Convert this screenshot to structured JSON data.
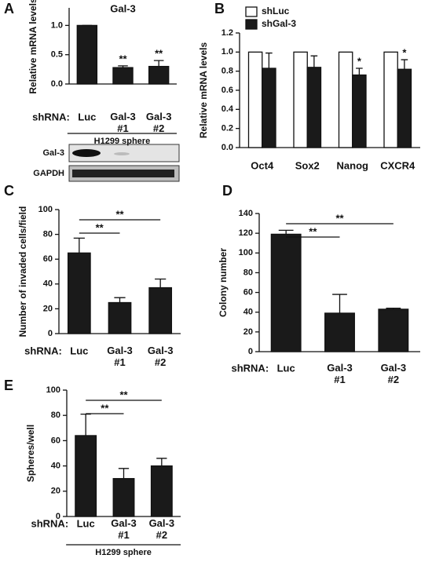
{
  "chart_data": [
    {
      "type": "bar",
      "panel": "A",
      "title": "Gal-3",
      "y_label": "Relative mRNA levels",
      "x_prefix": "shRNA:",
      "categories": [
        "Luc",
        "Gal-3 #1",
        "Gal-3 #2"
      ],
      "values": [
        1.0,
        0.28,
        0.3
      ],
      "errors": [
        0,
        0.03,
        0.1
      ],
      "annotations": [
        null,
        "**",
        "**"
      ],
      "color": "#1a1a1a",
      "footnote": "H1299 sphere",
      "ylim": [
        0,
        1.3
      ],
      "yticks": [
        {
          "value": 0,
          "label": "0.0"
        },
        0.5,
        {
          "value": 1,
          "label": "1.0"
        }
      ]
    },
    {
      "type": "grouped_bar",
      "panel": "B",
      "y_label": "Relative mRNA levels",
      "legend": "top-left",
      "categories": [
        "Oct4",
        "Sox2",
        "Nanog",
        "CXCR4"
      ],
      "series": [
        {
          "name": "shLuc",
          "color": "#ffffff",
          "values": [
            1.0,
            1.0,
            1.0,
            1.0
          ]
        },
        {
          "name": "shGal-3",
          "color": "#1a1a1a",
          "values": [
            0.83,
            0.84,
            0.76,
            0.82
          ],
          "errors": [
            0.16,
            0.12,
            0.07,
            0.1
          ],
          "annotations": [
            null,
            null,
            "*",
            "*"
          ]
        }
      ],
      "ylim": [
        0,
        1.2
      ],
      "yticks": [
        {
          "value": 0,
          "label": "0.0"
        },
        0.2,
        0.4,
        0.6,
        0.8,
        {
          "value": 1,
          "label": "1.0"
        },
        1.2
      ]
    },
    {
      "type": "bar",
      "panel": "C",
      "y_label": "Number of invaded cells/field",
      "x_prefix": "shRNA:",
      "categories": [
        "Luc",
        "Gal-3 #1",
        "Gal-3 #2"
      ],
      "values": [
        65,
        25,
        37
      ],
      "errors": [
        12,
        4,
        7
      ],
      "color": "#1a1a1a",
      "brackets": [
        {
          "label": "**",
          "from": "Luc",
          "to": "Gal-3 #1"
        },
        {
          "label": "**",
          "from": "Luc",
          "to": "Gal-3 #2"
        }
      ],
      "ylim": [
        0,
        100
      ],
      "yticks": [
        0,
        20,
        40,
        60,
        80,
        100
      ]
    },
    {
      "type": "bar",
      "panel": "D",
      "y_label": "Colony number",
      "x_prefix": "shRNA:",
      "categories": [
        "Luc",
        "Gal-3 #1",
        "Gal-3 #2"
      ],
      "values": [
        119,
        39,
        43
      ],
      "errors": [
        4,
        19,
        1
      ],
      "color": "#1a1a1a",
      "brackets": [
        {
          "label": "**",
          "from": "Luc",
          "to": "Gal-3 #1"
        },
        {
          "label": "**",
          "from": "Luc",
          "to": "Gal-3 #2"
        }
      ],
      "ylim": [
        0,
        140
      ],
      "yticks": [
        0,
        20,
        40,
        60,
        80,
        100,
        120,
        140
      ]
    },
    {
      "type": "bar",
      "panel": "E",
      "y_label": "Spheres/well",
      "x_prefix": "shRNA:",
      "categories": [
        "Luc",
        "Gal-3 #1",
        "Gal-3 #2"
      ],
      "values": [
        64,
        30,
        40
      ],
      "errors": [
        17,
        8,
        6
      ],
      "color": "#1a1a1a",
      "brackets": [
        {
          "label": "**",
          "from": "Luc",
          "to": "Gal-3 #1"
        },
        {
          "label": "**",
          "from": "Luc",
          "to": "Gal-3 #2"
        }
      ],
      "footnote": "H1299 sphere",
      "ylim": [
        0,
        100
      ],
      "yticks": [
        0,
        20,
        40,
        60,
        80,
        100
      ]
    }
  ],
  "blot": {
    "rows": [
      "Gal-3",
      "GAPDH"
    ]
  }
}
